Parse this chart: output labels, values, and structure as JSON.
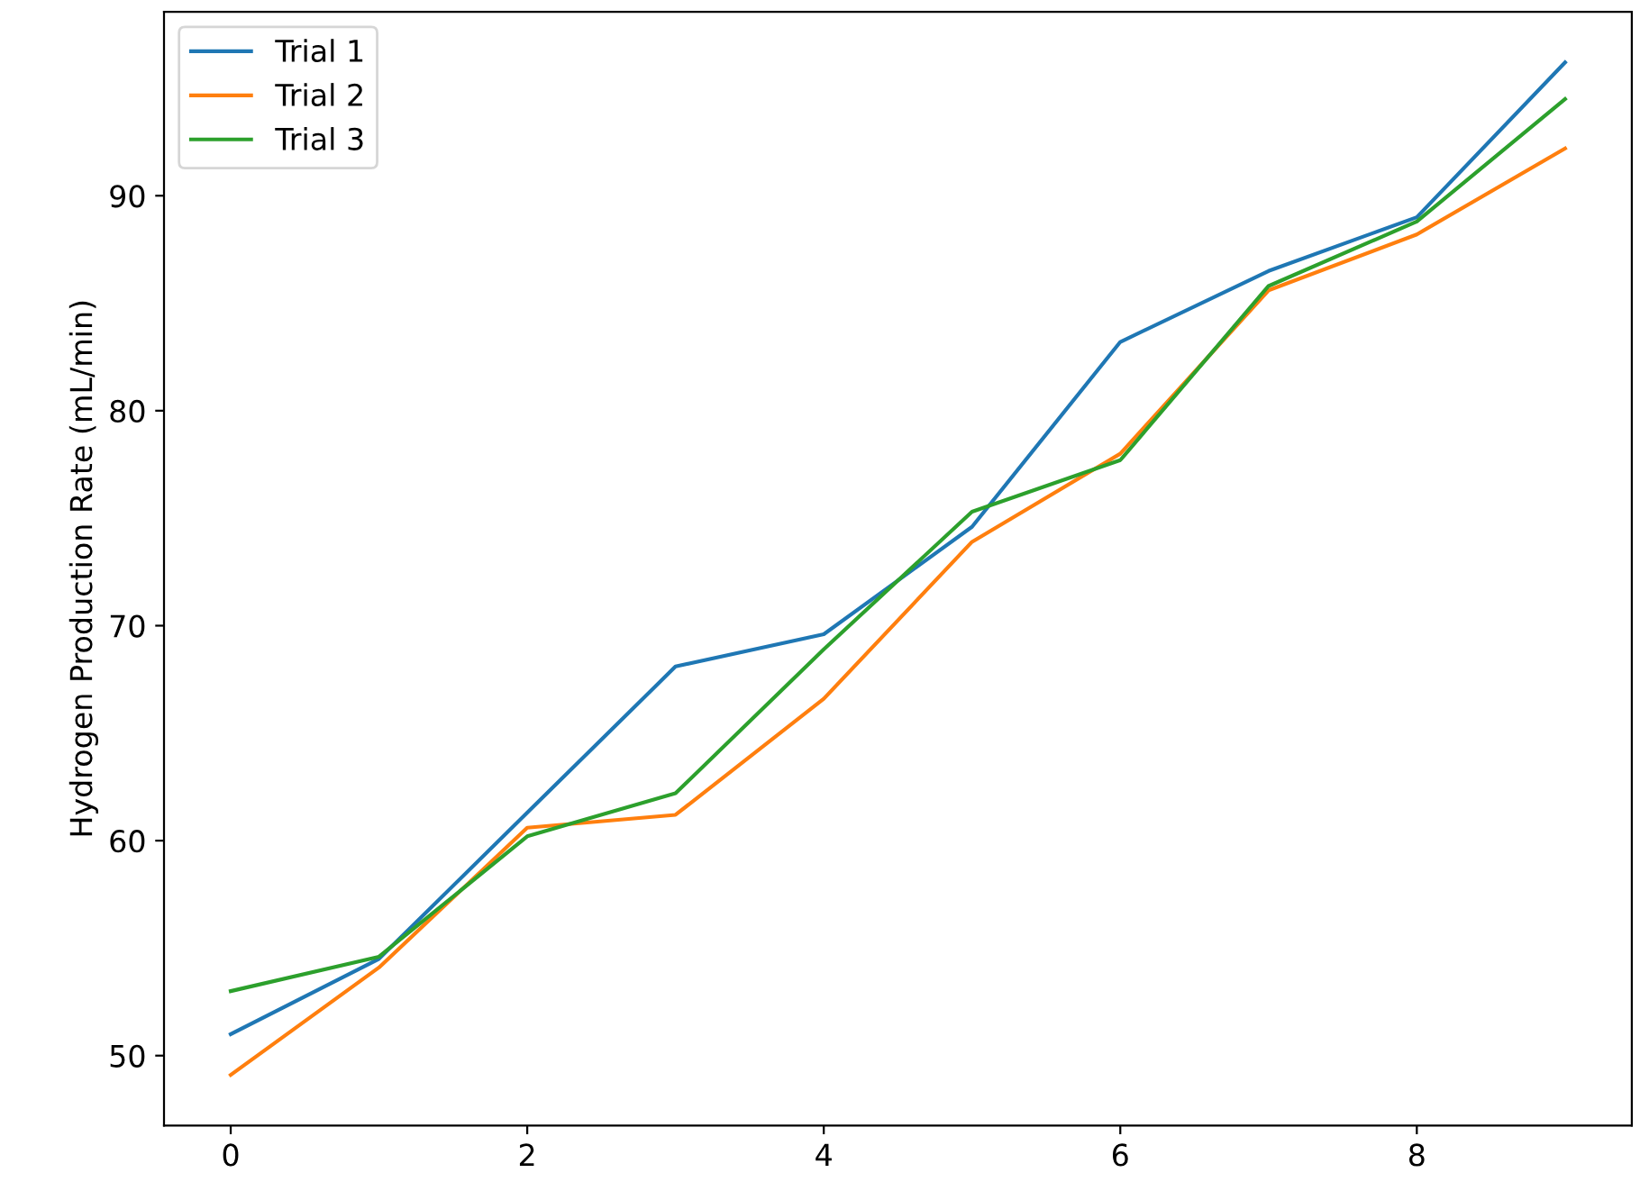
{
  "chart_data": {
    "type": "line",
    "ylabel": "Hydrogen Production Rate (mL/min)",
    "x": [
      0,
      1,
      2,
      3,
      4,
      5,
      6,
      7,
      8,
      9
    ],
    "series": [
      {
        "name": "Trial 1",
        "color": "#1f77b4",
        "values": [
          51.0,
          54.5,
          61.3,
          68.1,
          69.6,
          74.6,
          83.2,
          86.5,
          89.0,
          96.2
        ]
      },
      {
        "name": "Trial 2",
        "color": "#ff7f0e",
        "values": [
          49.1,
          54.1,
          60.6,
          61.2,
          66.6,
          73.9,
          78.0,
          85.6,
          88.2,
          92.2
        ]
      },
      {
        "name": "Trial 3",
        "color": "#2ca02c",
        "values": [
          53.0,
          54.6,
          60.2,
          62.2,
          68.9,
          75.3,
          77.7,
          85.8,
          88.8,
          94.5
        ]
      }
    ],
    "xlim": [
      -0.45,
      9.45
    ],
    "ylim": [
      46.75,
      98.55
    ],
    "xticks": [
      0,
      2,
      4,
      6,
      8
    ],
    "yticks": [
      50,
      60,
      70,
      80,
      90
    ],
    "legend": "top left",
    "grid": false
  }
}
